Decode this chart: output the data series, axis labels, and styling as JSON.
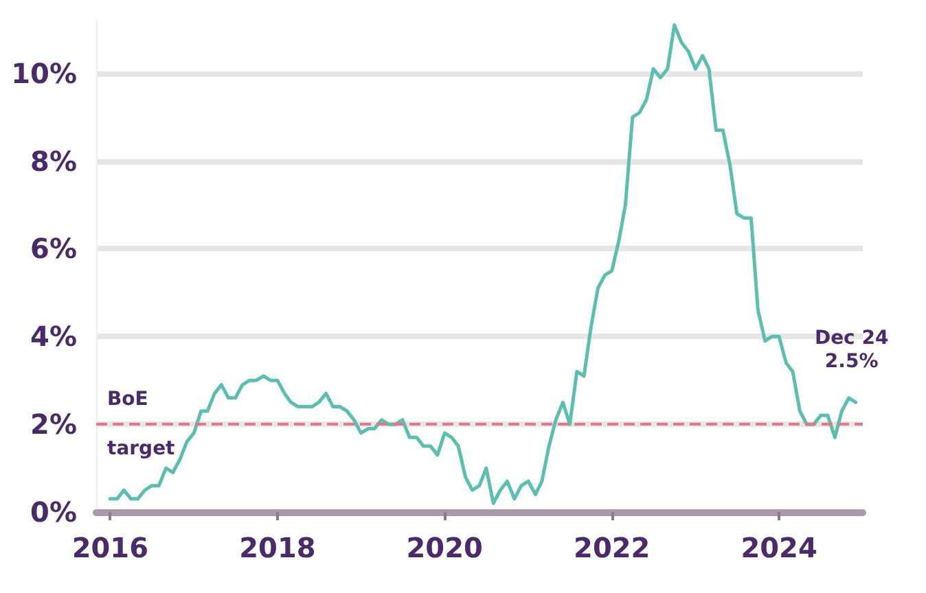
{
  "chart_data": {
    "type": "line",
    "x": [
      "2016-01",
      "2016-02",
      "2016-03",
      "2016-04",
      "2016-05",
      "2016-06",
      "2016-07",
      "2016-08",
      "2016-09",
      "2016-10",
      "2016-11",
      "2016-12",
      "2017-01",
      "2017-02",
      "2017-03",
      "2017-04",
      "2017-05",
      "2017-06",
      "2017-07",
      "2017-08",
      "2017-09",
      "2017-10",
      "2017-11",
      "2017-12",
      "2018-01",
      "2018-02",
      "2018-03",
      "2018-04",
      "2018-05",
      "2018-06",
      "2018-07",
      "2018-08",
      "2018-09",
      "2018-10",
      "2018-11",
      "2018-12",
      "2019-01",
      "2019-02",
      "2019-03",
      "2019-04",
      "2019-05",
      "2019-06",
      "2019-07",
      "2019-08",
      "2019-09",
      "2019-10",
      "2019-11",
      "2019-12",
      "2020-01",
      "2020-02",
      "2020-03",
      "2020-04",
      "2020-05",
      "2020-06",
      "2020-07",
      "2020-08",
      "2020-09",
      "2020-10",
      "2020-11",
      "2020-12",
      "2021-01",
      "2021-02",
      "2021-03",
      "2021-04",
      "2021-05",
      "2021-06",
      "2021-07",
      "2021-08",
      "2021-09",
      "2021-10",
      "2021-11",
      "2021-12",
      "2022-01",
      "2022-02",
      "2022-03",
      "2022-04",
      "2022-05",
      "2022-06",
      "2022-07",
      "2022-08",
      "2022-09",
      "2022-10",
      "2022-11",
      "2022-12",
      "2023-01",
      "2023-02",
      "2023-03",
      "2023-04",
      "2023-05",
      "2023-06",
      "2023-07",
      "2023-08",
      "2023-09",
      "2023-10",
      "2023-11",
      "2023-12",
      "2024-01",
      "2024-02",
      "2024-03",
      "2024-04",
      "2024-05",
      "2024-06",
      "2024-07",
      "2024-08",
      "2024-09",
      "2024-10",
      "2024-11",
      "2024-12"
    ],
    "series": [
      {
        "color": "#5bbfb0",
        "values": [
          0.3,
          0.3,
          0.5,
          0.3,
          0.3,
          0.5,
          0.6,
          0.6,
          1.0,
          0.9,
          1.2,
          1.6,
          1.8,
          2.3,
          2.3,
          2.7,
          2.9,
          2.6,
          2.6,
          2.9,
          3.0,
          3.0,
          3.1,
          3.0,
          3.0,
          2.7,
          2.5,
          2.4,
          2.4,
          2.4,
          2.5,
          2.7,
          2.4,
          2.4,
          2.3,
          2.1,
          1.8,
          1.9,
          1.9,
          2.1,
          2.0,
          2.0,
          2.1,
          1.7,
          1.7,
          1.5,
          1.5,
          1.3,
          1.8,
          1.7,
          1.5,
          0.8,
          0.5,
          0.6,
          1.0,
          0.2,
          0.5,
          0.7,
          0.3,
          0.6,
          0.7,
          0.4,
          0.7,
          1.5,
          2.1,
          2.5,
          2.0,
          3.2,
          3.1,
          4.2,
          5.1,
          5.4,
          5.5,
          6.2,
          7.0,
          9.0,
          9.1,
          9.4,
          10.1,
          9.9,
          10.1,
          11.1,
          10.7,
          10.5,
          10.1,
          10.4,
          10.1,
          8.7,
          8.7,
          7.9,
          6.8,
          6.7,
          6.7,
          4.6,
          3.9,
          4.0,
          4.0,
          3.4,
          3.2,
          2.3,
          2.0,
          2.0,
          2.2,
          2.2,
          1.7,
          2.3,
          2.6,
          2.5
        ]
      }
    ],
    "xlim": [
      "2015-11",
      "2025-01"
    ],
    "xticks": [
      "2016",
      "2018",
      "2020",
      "2022",
      "2024"
    ],
    "ylim": [
      0,
      11.2
    ],
    "yticks": [
      {
        "value": 0,
        "label": "0%"
      },
      {
        "value": 2,
        "label": "2%"
      },
      {
        "value": 4,
        "label": "4%"
      },
      {
        "value": 6,
        "label": "6%"
      },
      {
        "value": 8,
        "label": "8%"
      },
      {
        "value": 10,
        "label": "10%"
      }
    ],
    "grid": "y",
    "marker": "none",
    "line_style": "solid",
    "ref_lines": [
      {
        "axis": "y",
        "value": 2,
        "label": "BoE target",
        "color": "#e07a8a",
        "line_style": "dashed"
      }
    ],
    "annotations": [
      {
        "text": "Dec 24\n2.5%",
        "x": "2024-12",
        "y": 2.5
      }
    ]
  }
}
